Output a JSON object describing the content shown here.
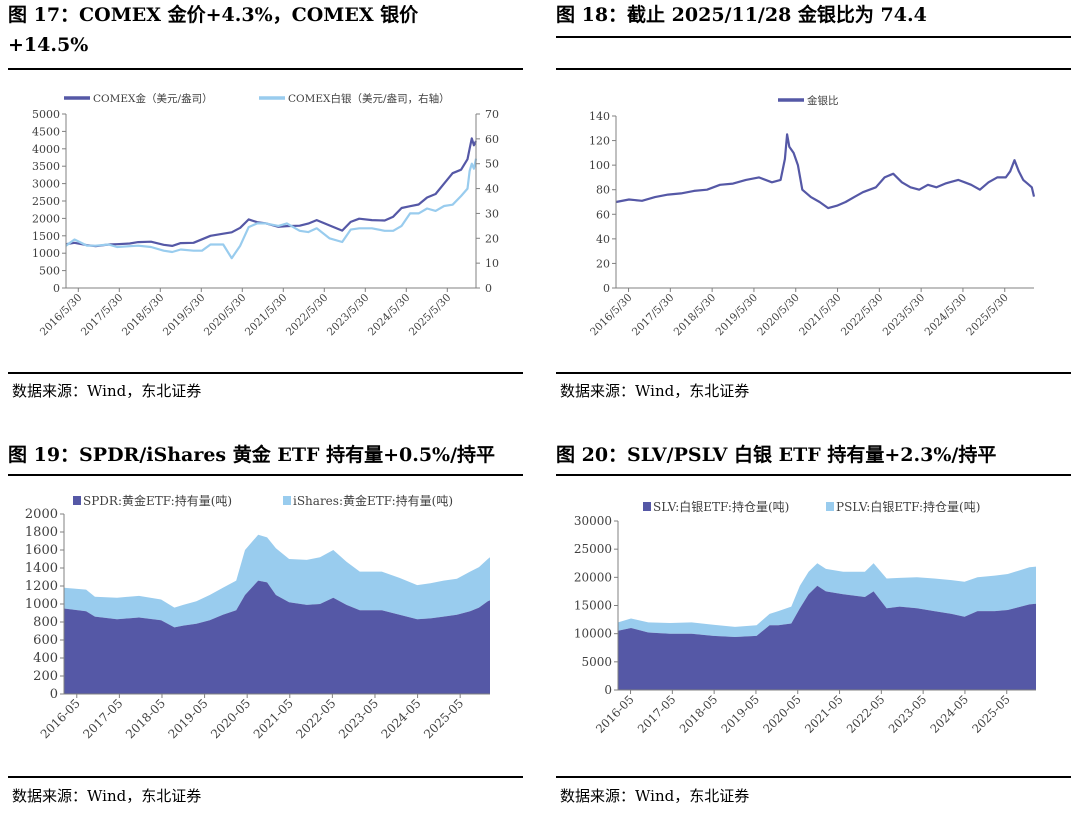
{
  "source_text": "数据来源：Wind，东北证券",
  "colors": {
    "gold": "#5558a6",
    "silver": "#99ccee",
    "axis": "#808080",
    "text": "#404040"
  },
  "chart_data": [
    {
      "id": "fig17",
      "title_lines": [
        "图 17：COMEX 金价+4.3%，COMEX 银价",
        "+14.5%"
      ],
      "type": "line",
      "x_tick_labels": [
        "2016/5/30",
        "2017/5/30",
        "2018/5/30",
        "2019/5/30",
        "2020/5/30",
        "2021/5/30",
        "2022/5/30",
        "2023/5/30",
        "2024/5/30",
        "2025/5/30"
      ],
      "x_range": [
        2016.3,
        2025.95
      ],
      "y_left": {
        "min": 0,
        "max": 5000,
        "ticks": [
          0,
          500,
          1000,
          1500,
          2000,
          2500,
          3000,
          3500,
          4000,
          4500,
          5000
        ]
      },
      "y_right": {
        "min": 0,
        "max": 70,
        "ticks": [
          0,
          10,
          20,
          30,
          40,
          50,
          60,
          70
        ]
      },
      "series": [
        {
          "name": "COMEX金（美元/盎司）",
          "axis": "left",
          "color": "#5558a6",
          "x": [
            2016.3,
            2016.5,
            2016.8,
            2017.0,
            2017.3,
            2017.5,
            2017.8,
            2018.0,
            2018.3,
            2018.6,
            2018.8,
            2019.0,
            2019.3,
            2019.5,
            2019.7,
            2020.0,
            2020.2,
            2020.4,
            2020.6,
            2020.8,
            2021.0,
            2021.3,
            2021.5,
            2021.8,
            2022.0,
            2022.2,
            2022.5,
            2022.8,
            2023.0,
            2023.2,
            2023.5,
            2023.8,
            2024.0,
            2024.2,
            2024.4,
            2024.6,
            2024.8,
            2025.0,
            2025.2,
            2025.4,
            2025.6,
            2025.75,
            2025.8,
            2025.85,
            2025.9,
            2025.95
          ],
          "y": [
            1260,
            1300,
            1230,
            1200,
            1250,
            1260,
            1280,
            1320,
            1330,
            1240,
            1210,
            1290,
            1300,
            1400,
            1500,
            1560,
            1600,
            1730,
            1970,
            1890,
            1860,
            1760,
            1780,
            1790,
            1850,
            1950,
            1800,
            1650,
            1900,
            1990,
            1950,
            1940,
            2050,
            2300,
            2350,
            2400,
            2600,
            2700,
            3000,
            3300,
            3400,
            3700,
            4000,
            4300,
            4100,
            4220
          ]
        },
        {
          "name": "COMEX白银（美元/盎司，右轴）",
          "axis": "right",
          "color": "#99ccee",
          "x": [
            2016.3,
            2016.5,
            2016.8,
            2017.0,
            2017.3,
            2017.5,
            2017.8,
            2018.0,
            2018.3,
            2018.6,
            2018.8,
            2019.0,
            2019.3,
            2019.5,
            2019.7,
            2020.0,
            2020.2,
            2020.4,
            2020.6,
            2020.8,
            2021.0,
            2021.3,
            2021.5,
            2021.8,
            2022.0,
            2022.2,
            2022.5,
            2022.8,
            2023.0,
            2023.2,
            2023.5,
            2023.8,
            2024.0,
            2024.2,
            2024.4,
            2024.6,
            2024.8,
            2025.0,
            2025.2,
            2025.4,
            2025.6,
            2025.75,
            2025.8,
            2025.85,
            2025.9,
            2025.95
          ],
          "y": [
            17,
            19.5,
            17,
            17,
            17.5,
            16.5,
            16.8,
            17,
            16.5,
            15,
            14.5,
            15.5,
            15,
            15,
            17.5,
            17.5,
            12,
            17,
            24.5,
            26,
            26,
            25,
            26,
            23,
            22.5,
            24,
            20,
            18.5,
            23.5,
            24,
            24,
            23,
            23,
            25,
            30,
            30,
            32,
            31,
            33,
            33.5,
            37,
            40,
            47,
            50,
            48,
            52
          ]
        }
      ]
    },
    {
      "id": "fig18",
      "title_lines": [
        "图 18：截止 2025/11/28 金银比为 74.4"
      ],
      "type": "line",
      "x_tick_labels": [
        "2016/5/30",
        "2017/5/30",
        "2018/5/30",
        "2019/5/30",
        "2020/5/30",
        "2021/5/30",
        "2022/5/30",
        "2023/5/30",
        "2024/5/30",
        "2025/5/30"
      ],
      "x_range": [
        2016.3,
        2025.95
      ],
      "y_left": {
        "min": 0,
        "max": 140,
        "ticks": [
          0,
          20,
          40,
          60,
          80,
          100,
          120,
          140
        ]
      },
      "series": [
        {
          "name": "金银比",
          "axis": "left",
          "color": "#5558a6",
          "x": [
            2016.3,
            2016.6,
            2016.9,
            2017.2,
            2017.5,
            2017.8,
            2018.1,
            2018.4,
            2018.7,
            2019.0,
            2019.3,
            2019.6,
            2019.9,
            2020.1,
            2020.2,
            2020.25,
            2020.3,
            2020.4,
            2020.5,
            2020.6,
            2020.8,
            2021.0,
            2021.2,
            2021.4,
            2021.6,
            2021.8,
            2022.0,
            2022.3,
            2022.5,
            2022.7,
            2022.9,
            2023.1,
            2023.3,
            2023.5,
            2023.7,
            2023.9,
            2024.0,
            2024.2,
            2024.35,
            2024.5,
            2024.7,
            2024.9,
            2025.1,
            2025.3,
            2025.4,
            2025.5,
            2025.6,
            2025.7,
            2025.8,
            2025.9,
            2025.95
          ],
          "y": [
            70,
            72,
            71,
            74,
            76,
            77,
            79,
            80,
            84,
            85,
            88,
            90,
            86,
            88,
            105,
            125,
            115,
            110,
            100,
            80,
            74,
            70,
            65,
            67,
            70,
            74,
            78,
            82,
            90,
            93,
            86,
            82,
            80,
            84,
            82,
            85,
            86,
            88,
            86,
            84,
            80,
            86,
            90,
            90,
            95,
            104,
            95,
            88,
            85,
            82,
            74.4
          ]
        }
      ]
    },
    {
      "id": "fig19",
      "title_lines": [
        "图 19：SPDR/iShares 黄金 ETF 持有量+0.5%/持平"
      ],
      "type": "area",
      "stacked": true,
      "x_tick_labels": [
        "2016-05",
        "2017-05",
        "2018-05",
        "2019-05",
        "2020-05",
        "2021-05",
        "2022-05",
        "2023-05",
        "2024-05",
        "2025-05"
      ],
      "x_range": [
        2016.3,
        2025.95
      ],
      "y_left": {
        "min": 0,
        "max": 2000,
        "ticks": [
          0,
          200,
          400,
          600,
          800,
          1000,
          1200,
          1400,
          1600,
          1800,
          2000
        ]
      },
      "series": [
        {
          "name": "SPDR:黄金ETF:持有量(吨)",
          "color": "#5558a6",
          "x": [
            2016.3,
            2016.8,
            2017.0,
            2017.5,
            2018.0,
            2018.5,
            2018.8,
            2019.0,
            2019.3,
            2019.6,
            2019.9,
            2020.2,
            2020.4,
            2020.7,
            2020.9,
            2021.1,
            2021.4,
            2021.8,
            2022.1,
            2022.4,
            2022.7,
            2023.0,
            2023.5,
            2023.9,
            2024.3,
            2024.6,
            2024.9,
            2025.2,
            2025.5,
            2025.7,
            2025.9,
            2025.95
          ],
          "y": [
            950,
            920,
            860,
            830,
            850,
            820,
            740,
            760,
            780,
            820,
            880,
            930,
            1100,
            1260,
            1240,
            1100,
            1020,
            990,
            1000,
            1070,
            990,
            930,
            930,
            880,
            830,
            840,
            860,
            880,
            920,
            960,
            1030,
            1040
          ]
        },
        {
          "name": "iShares:黄金ETF:持有量(吨)",
          "color": "#99ccee",
          "x": [
            2016.3,
            2016.8,
            2017.0,
            2017.5,
            2018.0,
            2018.5,
            2018.8,
            2019.0,
            2019.3,
            2019.6,
            2019.9,
            2020.2,
            2020.4,
            2020.7,
            2020.9,
            2021.1,
            2021.4,
            2021.8,
            2022.1,
            2022.4,
            2022.7,
            2023.0,
            2023.5,
            2023.9,
            2024.3,
            2024.6,
            2024.9,
            2025.2,
            2025.5,
            2025.7,
            2025.9,
            2025.95
          ],
          "y": [
            230,
            240,
            220,
            240,
            240,
            230,
            220,
            230,
            250,
            280,
            300,
            330,
            500,
            510,
            500,
            520,
            480,
            500,
            520,
            530,
            480,
            430,
            430,
            410,
            380,
            390,
            400,
            400,
            440,
            450,
            470,
            480
          ]
        }
      ]
    },
    {
      "id": "fig20",
      "title_lines": [
        "图 20：SLV/PSLV 白银 ETF 持有量+2.3%/持平"
      ],
      "type": "area",
      "stacked": true,
      "x_tick_labels": [
        "2016-05",
        "2017-05",
        "2018-05",
        "2019-05",
        "2020-05",
        "2021-05",
        "2022-05",
        "2023-05",
        "2024-05",
        "2025-05"
      ],
      "x_range": [
        2016.3,
        2025.95
      ],
      "y_left": {
        "min": 0,
        "max": 30000,
        "ticks": [
          0,
          5000,
          10000,
          15000,
          20000,
          25000,
          30000
        ]
      },
      "series": [
        {
          "name": "SLV:白银ETF:持仓量(吨)",
          "color": "#5558a6",
          "x": [
            2016.3,
            2016.6,
            2017.0,
            2017.5,
            2018.0,
            2018.5,
            2019.0,
            2019.5,
            2019.8,
            2020.0,
            2020.3,
            2020.5,
            2020.7,
            2020.9,
            2021.1,
            2021.5,
            2022.0,
            2022.2,
            2022.5,
            2022.8,
            2023.2,
            2023.6,
            2024.0,
            2024.3,
            2024.6,
            2025.0,
            2025.3,
            2025.6,
            2025.8,
            2025.95
          ],
          "y": [
            10500,
            11000,
            10200,
            10000,
            10000,
            9600,
            9400,
            9600,
            11500,
            11500,
            11800,
            14500,
            17000,
            18500,
            17500,
            17000,
            16500,
            17500,
            14500,
            14800,
            14500,
            14000,
            13500,
            13000,
            14000,
            14000,
            14200,
            14800,
            15200,
            15300
          ]
        },
        {
          "name": "PSLV:白银ETF:持仓量(吨)",
          "color": "#99ccee",
          "x": [
            2016.3,
            2016.6,
            2017.0,
            2017.5,
            2018.0,
            2018.5,
            2019.0,
            2019.5,
            2019.8,
            2020.0,
            2020.3,
            2020.5,
            2020.7,
            2020.9,
            2021.1,
            2021.5,
            2022.0,
            2022.2,
            2022.5,
            2022.8,
            2023.2,
            2023.6,
            2024.0,
            2024.3,
            2024.6,
            2025.0,
            2025.3,
            2025.6,
            2025.8,
            2025.95
          ],
          "y": [
            1500,
            1700,
            1800,
            1900,
            2000,
            2000,
            1800,
            1900,
            2000,
            2500,
            3000,
            4000,
            4000,
            4000,
            4000,
            4000,
            4500,
            5000,
            5300,
            5100,
            5500,
            5800,
            6000,
            6200,
            6000,
            6300,
            6400,
            6500,
            6600,
            6600
          ]
        }
      ]
    }
  ]
}
